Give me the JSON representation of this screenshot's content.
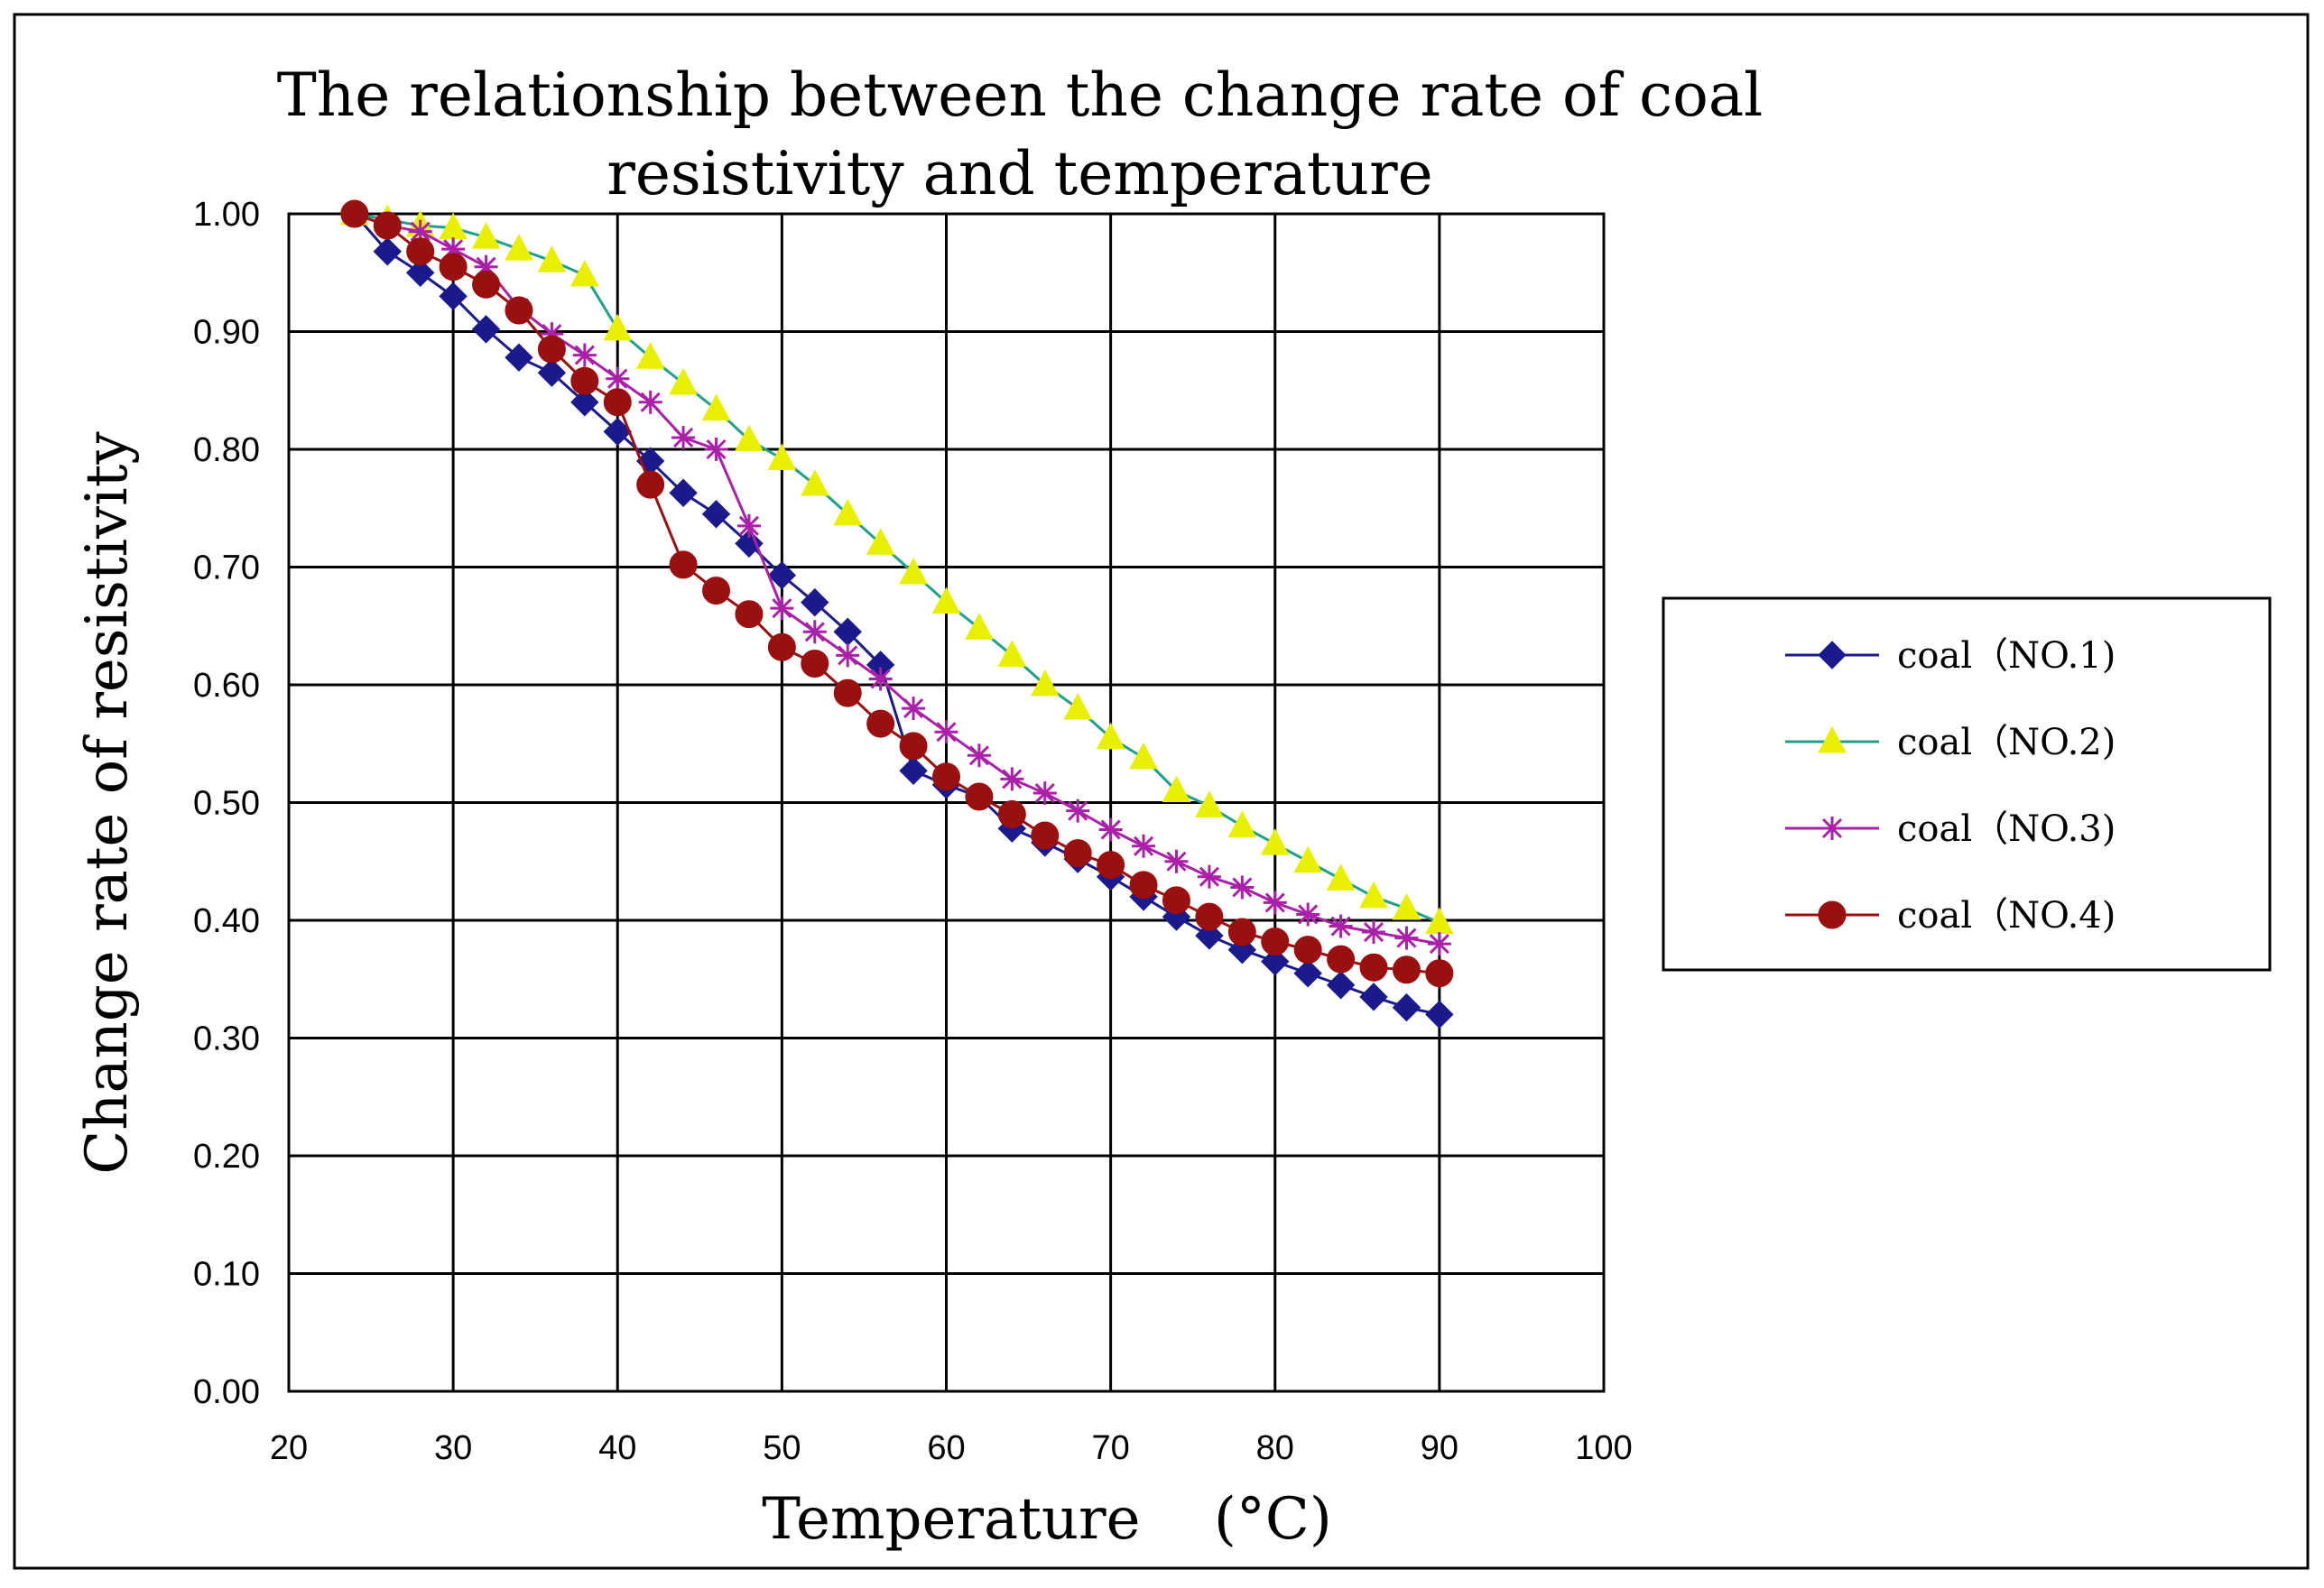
{
  "colors": {
    "series_1": "#1a1a8c",
    "series_2_line": "#1fa08a",
    "series_2_marker": "#e8f000",
    "series_3": "#aa20a8",
    "series_4": "#9a0f0f",
    "grid": "#000000",
    "frame": "#000000"
  },
  "chart_data": {
    "type": "line",
    "title": [
      "The relationship between the change rate of coal",
      "resistivity and temperature"
    ],
    "xlabel": "Temperature    (°C)",
    "ylabel": "Change rate of resistivity",
    "xlim": [
      20,
      100
    ],
    "ylim": [
      0,
      1
    ],
    "x_ticks": [
      20,
      30,
      40,
      50,
      60,
      70,
      80,
      90,
      100
    ],
    "x_tick_labels": [
      "20",
      "30",
      "40",
      "50",
      "60",
      "70",
      "80",
      "90",
      "100"
    ],
    "y_ticks": [
      0,
      0.1,
      0.2,
      0.3,
      0.4,
      0.5,
      0.6,
      0.7,
      0.8,
      0.9,
      1.0
    ],
    "y_tick_labels": [
      "0.00",
      "0.10",
      "0.20",
      "0.30",
      "0.40",
      "0.50",
      "0.60",
      "0.70",
      "0.80",
      "0.90",
      "1.00"
    ],
    "grid": true,
    "legend_position": "right",
    "x": [
      24,
      26,
      28,
      30,
      32,
      34,
      36,
      38,
      40,
      42,
      44,
      46,
      48,
      50,
      52,
      54,
      56,
      58,
      60,
      62,
      64,
      66,
      68,
      70,
      72,
      74,
      76,
      78,
      80,
      82,
      84,
      86,
      88,
      90
    ],
    "series": [
      {
        "name": "coal（NO.1)",
        "marker": "diamond",
        "values": [
          1.0,
          0.968,
          0.95,
          0.93,
          0.902,
          0.878,
          0.865,
          0.84,
          0.815,
          0.79,
          0.763,
          0.745,
          0.72,
          0.693,
          0.67,
          0.645,
          0.617,
          0.527,
          0.515,
          0.505,
          0.478,
          0.466,
          0.452,
          0.437,
          0.42,
          0.403,
          0.387,
          0.375,
          0.365,
          0.355,
          0.345,
          0.335,
          0.326,
          0.32
        ]
      },
      {
        "name": "coal（NO.2)",
        "marker": "triangle",
        "values": [
          1.0,
          0.995,
          0.99,
          0.988,
          0.98,
          0.97,
          0.96,
          0.948,
          0.902,
          0.878,
          0.856,
          0.834,
          0.808,
          0.792,
          0.77,
          0.745,
          0.72,
          0.695,
          0.67,
          0.648,
          0.625,
          0.6,
          0.58,
          0.555,
          0.538,
          0.51,
          0.497,
          0.48,
          0.465,
          0.45,
          0.435,
          0.42,
          0.41,
          0.398
        ]
      },
      {
        "name": "coal（NO.3)",
        "marker": "star",
        "values": [
          1.0,
          0.99,
          0.985,
          0.97,
          0.955,
          0.92,
          0.898,
          0.88,
          0.86,
          0.84,
          0.81,
          0.8,
          0.735,
          0.665,
          0.645,
          0.625,
          0.605,
          0.58,
          0.56,
          0.54,
          0.52,
          0.508,
          0.493,
          0.477,
          0.463,
          0.45,
          0.437,
          0.428,
          0.415,
          0.405,
          0.395,
          0.39,
          0.385,
          0.38
        ]
      },
      {
        "name": "coal（NO.4)",
        "marker": "circle",
        "values": [
          1.0,
          0.99,
          0.968,
          0.955,
          0.94,
          0.918,
          0.885,
          0.858,
          0.84,
          0.77,
          0.702,
          0.68,
          0.66,
          0.632,
          0.618,
          0.593,
          0.567,
          0.548,
          0.522,
          0.505,
          0.49,
          0.472,
          0.457,
          0.447,
          0.43,
          0.417,
          0.403,
          0.39,
          0.382,
          0.375,
          0.367,
          0.36,
          0.358,
          0.355
        ]
      }
    ]
  }
}
